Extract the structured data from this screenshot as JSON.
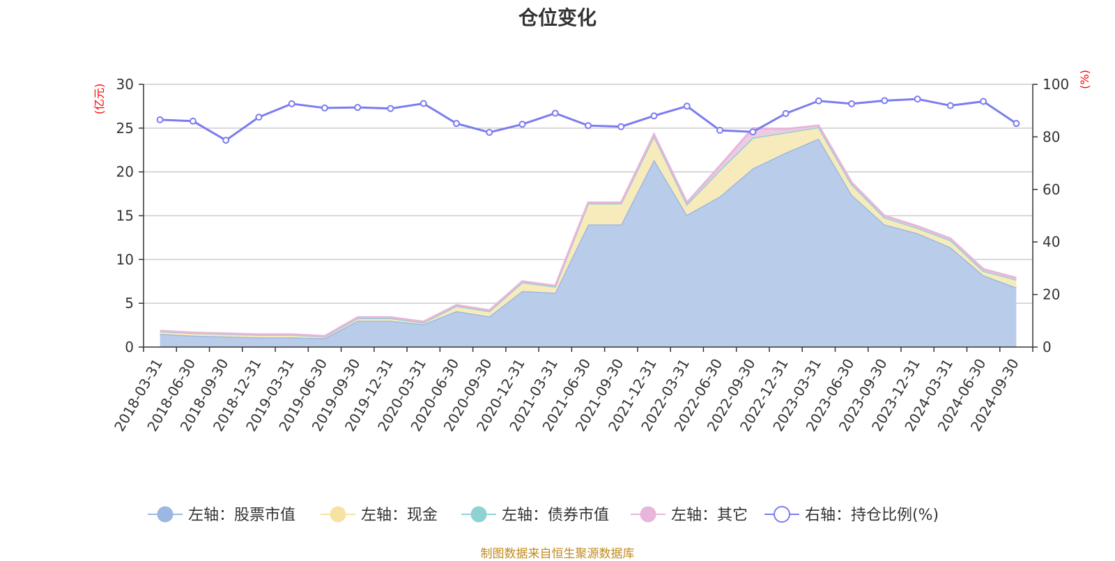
{
  "chart_data": {
    "type": "area",
    "title": "仓位变化",
    "left_axis_unit": "(亿元)",
    "right_axis_unit": "(%)",
    "ylim_left": [
      0,
      30
    ],
    "yticks_left": [
      0,
      5,
      10,
      15,
      20,
      25,
      30
    ],
    "ylim_right": [
      0,
      100
    ],
    "yticks_right": [
      0,
      20,
      40,
      60,
      80,
      100
    ],
    "grid": true,
    "legend_position": "bottom",
    "categories": [
      "2018-03-31",
      "2018-06-30",
      "2018-09-30",
      "2018-12-31",
      "2019-03-31",
      "2019-06-30",
      "2019-09-30",
      "2019-12-31",
      "2020-03-31",
      "2020-06-30",
      "2020-09-30",
      "2020-12-31",
      "2021-03-31",
      "2021-06-30",
      "2021-09-30",
      "2021-12-31",
      "2022-03-31",
      "2022-06-30",
      "2022-09-30",
      "2022-12-31",
      "2023-03-31",
      "2023-06-30",
      "2023-09-30",
      "2023-12-31",
      "2024-03-31",
      "2024-06-30",
      "2024-09-30"
    ],
    "series": [
      {
        "name": "左轴：股票市值",
        "axis": "left",
        "kind": "area",
        "color": "#9bb8e3",
        "fill": "#b9cdea",
        "values": [
          1.5,
          1.3,
          1.2,
          1.1,
          1.1,
          1.0,
          3.0,
          3.0,
          2.6,
          4.1,
          3.5,
          6.4,
          6.2,
          14.0,
          14.0,
          21.4,
          15.1,
          17.2,
          20.4,
          22.2,
          23.8,
          17.4,
          14.0,
          13.0,
          11.4,
          8.2,
          6.8
        ]
      },
      {
        "name": "左轴：现金",
        "axis": "left",
        "kind": "area",
        "color": "#f6e3a1",
        "fill": "#f8ebbb",
        "values": [
          0.3,
          0.3,
          0.3,
          0.3,
          0.3,
          0.2,
          0.3,
          0.3,
          0.2,
          0.6,
          0.6,
          1.0,
          0.7,
          2.4,
          2.4,
          2.7,
          1.2,
          3.0,
          3.5,
          2.3,
          1.3,
          1.2,
          0.8,
          0.6,
          0.8,
          0.5,
          0.9
        ]
      },
      {
        "name": "左轴：债券市值",
        "axis": "left",
        "kind": "area",
        "color": "#8fd2d2",
        "fill": "#a7dede",
        "values": [
          0,
          0,
          0,
          0,
          0,
          0,
          0,
          0,
          0,
          0,
          0,
          0,
          0,
          0,
          0,
          0,
          0,
          0,
          0,
          0,
          0,
          0,
          0,
          0,
          0,
          0,
          0
        ]
      },
      {
        "name": "左轴：其它",
        "axis": "left",
        "kind": "area",
        "color": "#e7b6da",
        "fill": "#eecbe3",
        "values": [
          0.05,
          0.05,
          0.05,
          0.05,
          0.05,
          0.05,
          0.1,
          0.1,
          0.1,
          0.1,
          0.1,
          0.1,
          0.1,
          0.1,
          0.1,
          0.2,
          0.2,
          0.5,
          1.1,
          0.4,
          0.2,
          0.2,
          0.2,
          0.2,
          0.2,
          0.2,
          0.2
        ]
      },
      {
        "name": "右轴：持仓比例(%)",
        "axis": "right",
        "kind": "line",
        "color": "#7b7cf0",
        "values": [
          86.5,
          86.0,
          78.7,
          87.5,
          92.6,
          91.0,
          91.2,
          90.8,
          92.7,
          85.1,
          81.7,
          84.8,
          89.0,
          84.3,
          83.9,
          88.0,
          91.7,
          82.5,
          81.9,
          88.9,
          93.7,
          92.6,
          93.8,
          94.4,
          91.9,
          93.5,
          85.1
        ]
      }
    ]
  },
  "source_text": "制图数据来自恒生聚源数据库"
}
